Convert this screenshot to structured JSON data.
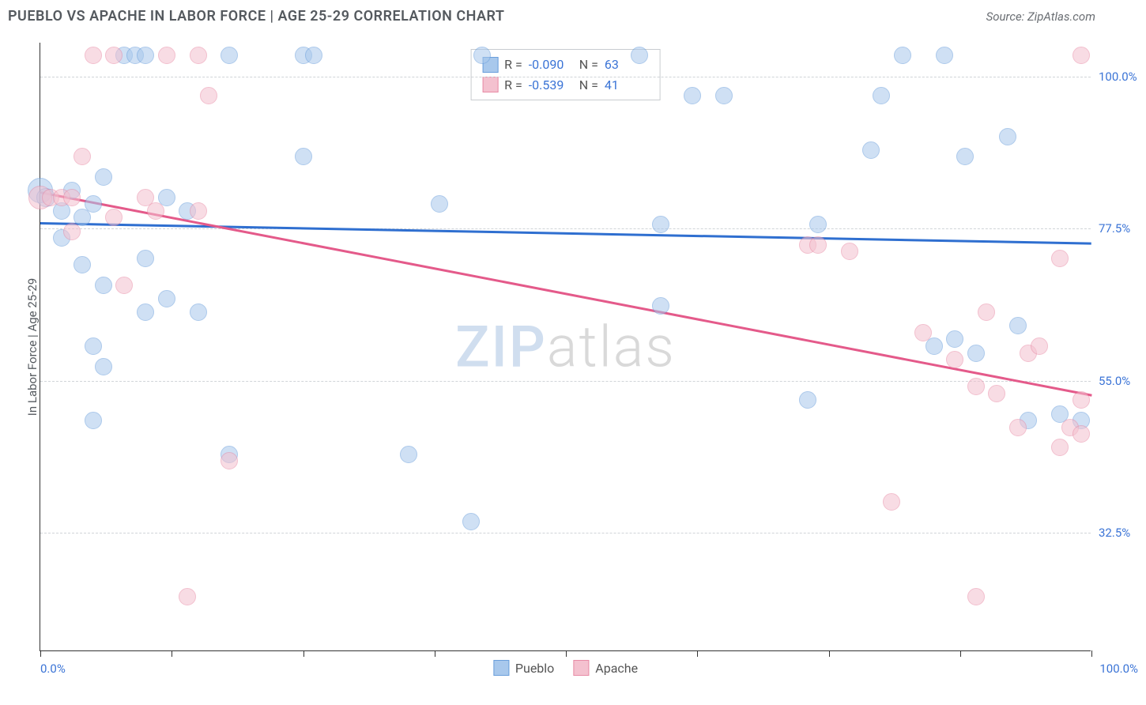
{
  "header": {
    "title": "PUEBLO VS APACHE IN LABOR FORCE | AGE 25-29 CORRELATION CHART",
    "source": "Source: ZipAtlas.com"
  },
  "watermark": {
    "part1": "ZIP",
    "part2": "atlas"
  },
  "chart": {
    "type": "scatter",
    "ylabel": "In Labor Force | Age 25-29",
    "background_color": "#ffffff",
    "grid_color": "#d0d4d8",
    "axis_color": "#333333",
    "label_color": "#555a5f",
    "tick_label_color": "#3b74d6",
    "title_fontsize": 18,
    "label_fontsize": 15,
    "point_radius": 11,
    "point_opacity": 0.55,
    "xlim": [
      0,
      100
    ],
    "ylim": [
      15,
      105
    ],
    "x_axis": {
      "min_label": "0.0%",
      "max_label": "100.0%",
      "tick_positions": [
        0,
        12.5,
        25,
        37.5,
        50,
        62.5,
        75,
        87.5,
        100
      ]
    },
    "y_gridlines": [
      {
        "value": 100.0,
        "label": "100.0%"
      },
      {
        "value": 77.5,
        "label": "77.5%"
      },
      {
        "value": 55.0,
        "label": "55.0%"
      },
      {
        "value": 32.5,
        "label": "32.5%"
      }
    ],
    "series": [
      {
        "name": "Pueblo",
        "fill_color": "#a8c8ec",
        "stroke_color": "#6a9edb",
        "line_color": "#2f6fd0",
        "trend": {
          "x1": 0,
          "y1": 78.5,
          "x2": 100,
          "y2": 75.5
        },
        "r_label": "R =",
        "r_value": "-0.090",
        "n_label": "N =",
        "n_value": "63",
        "points": [
          {
            "x": 0,
            "y": 83,
            "r": 16
          },
          {
            "x": 0.5,
            "y": 82,
            "r": 12
          },
          {
            "x": 2,
            "y": 80
          },
          {
            "x": 2,
            "y": 76
          },
          {
            "x": 3,
            "y": 83
          },
          {
            "x": 4,
            "y": 79
          },
          {
            "x": 4,
            "y": 72
          },
          {
            "x": 5,
            "y": 81
          },
          {
            "x": 5,
            "y": 60
          },
          {
            "x": 5,
            "y": 49
          },
          {
            "x": 6,
            "y": 85
          },
          {
            "x": 6,
            "y": 69
          },
          {
            "x": 6,
            "y": 57
          },
          {
            "x": 8,
            "y": 103
          },
          {
            "x": 9,
            "y": 103
          },
          {
            "x": 10,
            "y": 103
          },
          {
            "x": 10,
            "y": 73
          },
          {
            "x": 10,
            "y": 65
          },
          {
            "x": 12,
            "y": 82
          },
          {
            "x": 12,
            "y": 67
          },
          {
            "x": 14,
            "y": 80
          },
          {
            "x": 15,
            "y": 65
          },
          {
            "x": 18,
            "y": 103
          },
          {
            "x": 18,
            "y": 44
          },
          {
            "x": 25,
            "y": 103
          },
          {
            "x": 25,
            "y": 88
          },
          {
            "x": 26,
            "y": 103
          },
          {
            "x": 35,
            "y": 44
          },
          {
            "x": 38,
            "y": 81
          },
          {
            "x": 41,
            "y": 34
          },
          {
            "x": 42,
            "y": 103
          },
          {
            "x": 57,
            "y": 103
          },
          {
            "x": 59,
            "y": 78
          },
          {
            "x": 59,
            "y": 66
          },
          {
            "x": 62,
            "y": 97
          },
          {
            "x": 65,
            "y": 97
          },
          {
            "x": 73,
            "y": 52
          },
          {
            "x": 74,
            "y": 78
          },
          {
            "x": 79,
            "y": 89
          },
          {
            "x": 80,
            "y": 97
          },
          {
            "x": 82,
            "y": 103
          },
          {
            "x": 85,
            "y": 60
          },
          {
            "x": 86,
            "y": 103
          },
          {
            "x": 87,
            "y": 61
          },
          {
            "x": 88,
            "y": 88
          },
          {
            "x": 89,
            "y": 59
          },
          {
            "x": 92,
            "y": 91
          },
          {
            "x": 93,
            "y": 63
          },
          {
            "x": 94,
            "y": 49
          },
          {
            "x": 97,
            "y": 50
          },
          {
            "x": 99,
            "y": 49
          }
        ]
      },
      {
        "name": "Apache",
        "fill_color": "#f4c1cf",
        "stroke_color": "#e88ba6",
        "line_color": "#e45a8a",
        "trend": {
          "x1": 0,
          "y1": 83.0,
          "x2": 100,
          "y2": 53.0
        },
        "r_label": "R =",
        "r_value": "-0.539",
        "n_label": "N =",
        "n_value": "41",
        "points": [
          {
            "x": 0,
            "y": 82,
            "r": 15
          },
          {
            "x": 1,
            "y": 82
          },
          {
            "x": 2,
            "y": 82
          },
          {
            "x": 3,
            "y": 82
          },
          {
            "x": 3,
            "y": 77
          },
          {
            "x": 4,
            "y": 88
          },
          {
            "x": 5,
            "y": 103
          },
          {
            "x": 7,
            "y": 103
          },
          {
            "x": 7,
            "y": 79
          },
          {
            "x": 8,
            "y": 69
          },
          {
            "x": 10,
            "y": 82
          },
          {
            "x": 11,
            "y": 80
          },
          {
            "x": 12,
            "y": 103
          },
          {
            "x": 14,
            "y": 23
          },
          {
            "x": 15,
            "y": 103
          },
          {
            "x": 15,
            "y": 80
          },
          {
            "x": 16,
            "y": 97
          },
          {
            "x": 18,
            "y": 43
          },
          {
            "x": 73,
            "y": 75
          },
          {
            "x": 74,
            "y": 75
          },
          {
            "x": 77,
            "y": 74
          },
          {
            "x": 81,
            "y": 37
          },
          {
            "x": 84,
            "y": 62
          },
          {
            "x": 87,
            "y": 58
          },
          {
            "x": 89,
            "y": 23
          },
          {
            "x": 89,
            "y": 54
          },
          {
            "x": 90,
            "y": 65
          },
          {
            "x": 91,
            "y": 53
          },
          {
            "x": 93,
            "y": 48
          },
          {
            "x": 94,
            "y": 59
          },
          {
            "x": 95,
            "y": 60
          },
          {
            "x": 97,
            "y": 45
          },
          {
            "x": 97,
            "y": 73
          },
          {
            "x": 98,
            "y": 48
          },
          {
            "x": 99,
            "y": 52
          },
          {
            "x": 99,
            "y": 47
          },
          {
            "x": 99,
            "y": 103
          }
        ]
      }
    ]
  }
}
